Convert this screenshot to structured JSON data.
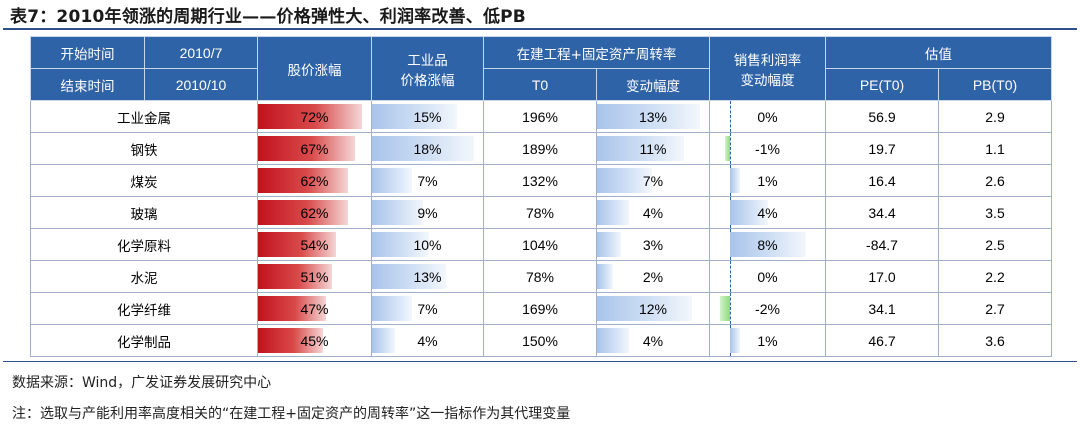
{
  "title": "表7：2010年领涨的周期行业——价格弹性大、利润率改善、低PB",
  "header": {
    "start_label": "开始时间",
    "start_value": "2010/7",
    "end_label": "结束时间",
    "end_value": "2010/10",
    "stock_change": "股价涨幅",
    "industrial_price_line1": "工业品",
    "industrial_price_line2": "价格涨幅",
    "turnover_group": "在建工程+固定资产周转率",
    "turnover_t0": "T0",
    "turnover_change": "变动幅度",
    "margin_line1": "销售利润率",
    "margin_line2": "变动幅度",
    "valuation_group": "估值",
    "pe": "PE(T0)",
    "pb": "PB(T0)"
  },
  "rows": [
    {
      "name": "工业金属",
      "stock": "72%",
      "stock_v": 72,
      "price": "15%",
      "price_v": 15,
      "t0": "196%",
      "chg": "13%",
      "chg_v": 13,
      "margin": "0%",
      "margin_v": 0,
      "pe": "56.9",
      "pb": "2.9"
    },
    {
      "name": "钢铁",
      "stock": "67%",
      "stock_v": 67,
      "price": "18%",
      "price_v": 18,
      "t0": "189%",
      "chg": "11%",
      "chg_v": 11,
      "margin": "-1%",
      "margin_v": -1,
      "pe": "19.7",
      "pb": "1.1"
    },
    {
      "name": "煤炭",
      "stock": "62%",
      "stock_v": 62,
      "price": "7%",
      "price_v": 7,
      "t0": "132%",
      "chg": "7%",
      "chg_v": 7,
      "margin": "1%",
      "margin_v": 1,
      "pe": "16.4",
      "pb": "2.6"
    },
    {
      "name": "玻璃",
      "stock": "62%",
      "stock_v": 62,
      "price": "9%",
      "price_v": 9,
      "t0": "78%",
      "chg": "4%",
      "chg_v": 4,
      "margin": "4%",
      "margin_v": 4,
      "pe": "34.4",
      "pb": "3.5"
    },
    {
      "name": "化学原料",
      "stock": "54%",
      "stock_v": 54,
      "price": "10%",
      "price_v": 10,
      "t0": "104%",
      "chg": "3%",
      "chg_v": 3,
      "margin": "8%",
      "margin_v": 8,
      "pe": "-84.7",
      "pb": "2.5"
    },
    {
      "name": "水泥",
      "stock": "51%",
      "stock_v": 51,
      "price": "13%",
      "price_v": 13,
      "t0": "78%",
      "chg": "2%",
      "chg_v": 2,
      "margin": "0%",
      "margin_v": 0,
      "pe": "17.0",
      "pb": "2.2"
    },
    {
      "name": "化学纤维",
      "stock": "47%",
      "stock_v": 47,
      "price": "7%",
      "price_v": 7,
      "t0": "169%",
      "chg": "12%",
      "chg_v": 12,
      "margin": "-2%",
      "margin_v": -2,
      "pe": "34.1",
      "pb": "2.7"
    },
    {
      "name": "化学制品",
      "stock": "45%",
      "stock_v": 45,
      "price": "4%",
      "price_v": 4,
      "t0": "150%",
      "chg": "4%",
      "chg_v": 4,
      "margin": "1%",
      "margin_v": 1,
      "pe": "46.7",
      "pb": "3.6"
    }
  ],
  "colors": {
    "header_bg": "#2f63a8",
    "stock_bar": "#c1121f",
    "blue_bar": "#a9c4ea",
    "green_bar": "#8ddb7a"
  },
  "footnotes": {
    "source": "数据来源：Wind，广发证券发展研究中心",
    "note": "注：选取与产能利用率高度相关的“在建工程+固定资产的周转率”这一指标作为其代理变量"
  }
}
